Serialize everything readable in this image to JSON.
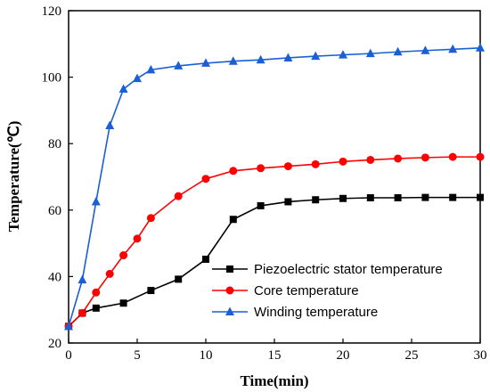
{
  "chart_data": {
    "type": "line",
    "xlabel": "Time(min)",
    "ylabel": "Temperature(℃)",
    "xlim": [
      0,
      30
    ],
    "ylim": [
      20,
      120
    ],
    "xticks": [
      0,
      5,
      10,
      15,
      20,
      25,
      30
    ],
    "yticks": [
      20,
      40,
      60,
      80,
      100,
      120
    ],
    "grid": false,
    "legend_position": "bottom-right",
    "series": [
      {
        "name": "Piezoelectric stator temperature",
        "color": "#000000",
        "marker": "square",
        "x": [
          0,
          1,
          2,
          4,
          6,
          8,
          10,
          12,
          14,
          16,
          18,
          20,
          22,
          24,
          26,
          28,
          30
        ],
        "y": [
          25,
          29,
          30.5,
          32,
          35.8,
          39.2,
          45.2,
          57.2,
          61.3,
          62.5,
          63.1,
          63.5,
          63.7,
          63.7,
          63.8,
          63.8,
          63.8
        ]
      },
      {
        "name": "Core temperature",
        "color": "#ff0000",
        "marker": "circle",
        "x": [
          0,
          1,
          2,
          3,
          4,
          5,
          6,
          8,
          10,
          12,
          14,
          16,
          18,
          20,
          22,
          24,
          26,
          28,
          30
        ],
        "y": [
          25,
          29,
          35.2,
          40.8,
          46.4,
          51.4,
          57.6,
          64.2,
          69.4,
          71.8,
          72.6,
          73.2,
          73.8,
          74.6,
          75.1,
          75.5,
          75.8,
          76,
          76
        ]
      },
      {
        "name": "Winding temperature",
        "color": "#1a5fd6",
        "marker": "triangle",
        "x": [
          0,
          1,
          2,
          3,
          4,
          5,
          6,
          8,
          10,
          12,
          14,
          16,
          18,
          20,
          22,
          24,
          26,
          28,
          30
        ],
        "y": [
          25,
          39,
          62.5,
          85.4,
          96.4,
          99.6,
          102.2,
          103.4,
          104.2,
          104.8,
          105.2,
          105.8,
          106.3,
          106.7,
          107.1,
          107.6,
          108,
          108.4,
          108.8
        ]
      }
    ]
  }
}
